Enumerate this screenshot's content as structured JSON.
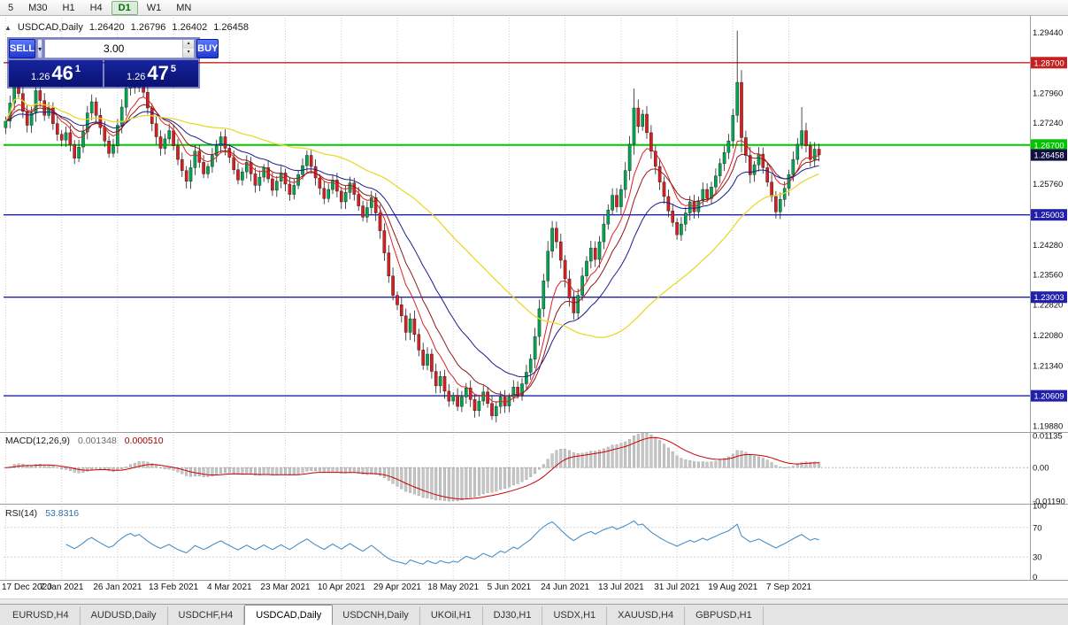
{
  "toolbar": {
    "timeframes": [
      {
        "label": "5"
      },
      {
        "label": "M30"
      },
      {
        "label": "H1"
      },
      {
        "label": "H4"
      },
      {
        "label": "D1",
        "active": true
      },
      {
        "label": "W1"
      },
      {
        "label": "MN"
      }
    ]
  },
  "icons": {
    "collapse": "▲",
    "dropdown": "▾",
    "spin_up": "▴",
    "spin_down": "▾"
  },
  "chart_header": {
    "symbol": "USDCAD,Daily",
    "open": "1.26420",
    "high": "1.26796",
    "low": "1.26402",
    "close": "1.26458"
  },
  "trade_panel": {
    "sell_label": "SELL",
    "buy_label": "BUY",
    "volume": "3.00",
    "sell_price": {
      "prefix": "1.26",
      "big": "46",
      "small": "1"
    },
    "buy_price": {
      "prefix": "1.26",
      "big": "47",
      "small": "5"
    }
  },
  "indicators": {
    "macd": {
      "title": "MACD(12,26,9)",
      "value1": "0.001348",
      "value2": "0.000510",
      "fast": 12,
      "slow": 26,
      "signal": 9,
      "range": [
        -0.0125,
        0.012
      ],
      "axis_labels": [
        {
          "text": "0.01135",
          "value": 0.01135
        },
        {
          "text": "0.00",
          "value": 0
        },
        {
          "text": "-0.01190",
          "value": -0.0119
        }
      ]
    },
    "rsi": {
      "title": "RSI(14)",
      "value": "53.8316",
      "period": 14,
      "levels": [
        70,
        30
      ],
      "range": [
        0,
        100
      ],
      "axis_labels": [
        {
          "text": "100",
          "value": 100
        },
        {
          "text": "70",
          "value": 70
        },
        {
          "text": "30",
          "value": 30
        },
        {
          "text": "0",
          "value": 0
        }
      ]
    }
  },
  "price_axis": {
    "range": [
      1.1975,
      1.2975
    ],
    "ticks": [
      "1.29440",
      "1.27960",
      "1.27240",
      "1.25760",
      "1.24280",
      "1.23560",
      "1.22820",
      "1.22080",
      "1.21340",
      "1.19880"
    ],
    "badges": [
      {
        "text": "1.28700",
        "value": 1.287,
        "color": "#c42020",
        "type": "resistance-line"
      },
      {
        "text": "1.26700",
        "value": 1.267,
        "color": "#00c400",
        "type": "support-line"
      },
      {
        "text": "1.26458",
        "value": 1.26458,
        "color": "#101040",
        "type": "current-price"
      },
      {
        "text": "1.25003",
        "value": 1.25003,
        "color": "#2020a8",
        "type": "level-line"
      },
      {
        "text": "1.23003",
        "value": 1.23003,
        "color": "#2020a8",
        "type": "level-line"
      },
      {
        "text": "1.20609",
        "value": 1.20609,
        "color": "#2020a8",
        "type": "level-line"
      }
    ]
  },
  "hlines": [
    {
      "value": 1.287,
      "color": "#c42020",
      "width": 1.4
    },
    {
      "value": 1.267,
      "color": "#00c800",
      "width": 2
    },
    {
      "value": 1.25003,
      "color": "#2020a8",
      "width": 1.4
    },
    {
      "value": 1.23003,
      "color": "#2020a8",
      "width": 1.4
    },
    {
      "value": 1.20609,
      "color": "#2020a8",
      "width": 1.4
    }
  ],
  "chart_data": {
    "type": "candlestick",
    "symbol": "USDCAD",
    "timeframe": "Daily",
    "x_labels": [
      "17 Dec 2020",
      "7 Jan 2021",
      "26 Jan 2021",
      "13 Feb 2021",
      "4 Mar 2021",
      "23 Mar 2021",
      "10 Apr 2021",
      "29 Apr 2021",
      "18 May 2021",
      "5 Jun 2021",
      "24 Jun 2021",
      "13 Jul 2021",
      "31 Jul 2021",
      "19 Aug 2021",
      "7 Sep 2021"
    ],
    "label_every": 13,
    "first_open": 1.2712,
    "closes": [
      1.2728,
      1.2772,
      1.284,
      1.2795,
      1.2752,
      1.2718,
      1.2748,
      1.2802,
      1.2778,
      1.2742,
      1.276,
      1.2722,
      1.2696,
      1.2682,
      1.27,
      1.2671,
      1.2638,
      1.2665,
      1.2702,
      1.2748,
      1.2775,
      1.2742,
      1.2712,
      1.268,
      1.265,
      1.2668,
      1.2718,
      1.2762,
      1.2808,
      1.2838,
      1.281,
      1.2835,
      1.2798,
      1.276,
      1.2722,
      1.269,
      1.2662,
      1.2685,
      1.2705,
      1.2668,
      1.2635,
      1.2608,
      1.2582,
      1.2615,
      1.2655,
      1.2628,
      1.26,
      1.2618,
      1.2645,
      1.2668,
      1.269,
      1.2662,
      1.264,
      1.261,
      1.2585,
      1.2605,
      1.2628,
      1.26,
      1.2572,
      1.2592,
      1.2615,
      1.2588,
      1.256,
      1.2582,
      1.2602,
      1.2575,
      1.255,
      1.2572,
      1.2598,
      1.262,
      1.2645,
      1.2618,
      1.259,
      1.2565,
      1.254,
      1.2562,
      1.2585,
      1.2558,
      1.2532,
      1.2555,
      1.2578,
      1.255,
      1.2522,
      1.2495,
      1.2518,
      1.2542,
      1.2505,
      1.2462,
      1.2408,
      1.2352,
      1.2305,
      1.2282,
      1.2255,
      1.2215,
      1.2248,
      1.221,
      1.2172,
      1.2135,
      1.2162,
      1.212,
      1.2085,
      1.2108,
      1.2072,
      1.2048,
      1.2062,
      1.2035,
      1.2058,
      1.208,
      1.2052,
      1.2025,
      1.2048,
      1.207,
      1.2042,
      1.2012,
      1.2035,
      1.2058,
      1.2036,
      1.2058,
      1.2082,
      1.2062,
      1.209,
      1.2118,
      1.215,
      1.2205,
      1.2272,
      1.234,
      1.2412,
      1.2468,
      1.2435,
      1.239,
      1.2345,
      1.2298,
      1.2262,
      1.2305,
      1.2352,
      1.2388,
      1.242,
      1.2392,
      1.2435,
      1.2478,
      1.2512,
      1.2548,
      1.252,
      1.2562,
      1.2608,
      1.2672,
      1.276,
      1.2715,
      1.2745,
      1.27,
      1.2655,
      1.2618,
      1.258,
      1.2545,
      1.251,
      1.2482,
      1.2452,
      1.2478,
      1.2505,
      1.2532,
      1.2508,
      1.2535,
      1.2562,
      1.254,
      1.2568,
      1.2595,
      1.2625,
      1.2652,
      1.268,
      1.2742,
      1.2822,
      1.2688,
      1.2645,
      1.2598,
      1.2622,
      1.2648,
      1.2615,
      1.258,
      1.2545,
      1.2508,
      1.2538,
      1.2565,
      1.2598,
      1.2635,
      1.2672,
      1.2705,
      1.2668,
      1.2635,
      1.266,
      1.2646
    ],
    "spikes": {
      "2": {
        "high": 1.2848
      },
      "113": {
        "low": 1.2002
      },
      "146": {
        "high": 1.2807
      },
      "170": {
        "high": 1.2948
      },
      "171": {
        "low": 1.2652
      },
      "185": {
        "high": 1.2762
      }
    },
    "moving_averages": [
      {
        "period": 8,
        "type": "ema",
        "color": "#dd2222"
      },
      {
        "period": 13,
        "type": "ema",
        "color": "#8b1a1a"
      },
      {
        "period": 24,
        "type": "ema",
        "color": "#1a1a8c"
      },
      {
        "period": 52,
        "type": "sma",
        "color": "#e8d930"
      }
    ],
    "colors": {
      "bull": "#00a651",
      "bear": "#d81e1e",
      "wick": "#222222"
    }
  },
  "tabs": [
    {
      "label": "EURUSD,H4"
    },
    {
      "label": "AUDUSD,Daily"
    },
    {
      "label": "USDCHF,H4"
    },
    {
      "label": "USDCAD,Daily",
      "active": true
    },
    {
      "label": "USDCNH,Daily"
    },
    {
      "label": "UKOil,H1"
    },
    {
      "label": "DJ30,H1"
    },
    {
      "label": "USDX,H1"
    },
    {
      "label": "XAUUSD,H4"
    },
    {
      "label": "GBPUSD,H1"
    }
  ]
}
